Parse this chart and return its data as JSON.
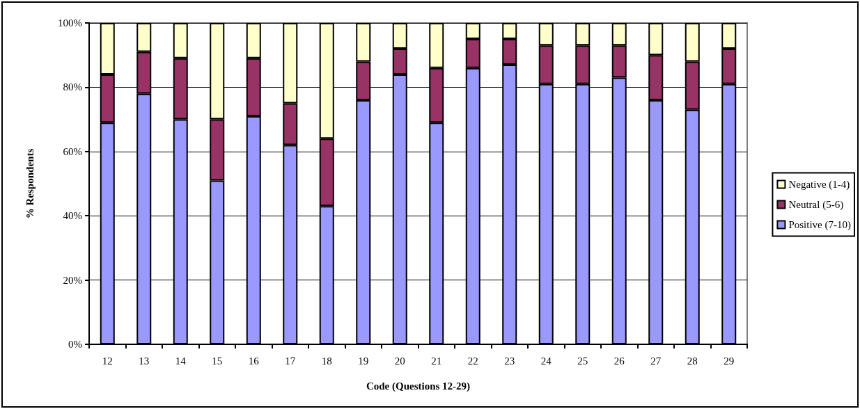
{
  "chart_data": {
    "type": "bar",
    "stacked": true,
    "xlabel": "Code (Questions 12-29)",
    "ylabel": "% Respondents",
    "categories": [
      "12",
      "13",
      "14",
      "15",
      "16",
      "17",
      "18",
      "19",
      "20",
      "21",
      "22",
      "23",
      "24",
      "25",
      "26",
      "27",
      "28",
      "29"
    ],
    "series": [
      {
        "name": "Positive (7-10)",
        "color": "#9999ff",
        "values": [
          69,
          78,
          70,
          51,
          71,
          62,
          43,
          76,
          84,
          69,
          86,
          87,
          81,
          81,
          83,
          76,
          73,
          81
        ]
      },
      {
        "name": "Neutral (5-6)",
        "color": "#993366",
        "values": [
          15,
          13,
          19,
          19,
          18,
          13,
          21,
          12,
          8,
          17,
          9,
          8,
          12,
          12,
          10,
          14,
          15,
          11
        ]
      },
      {
        "name": "Negative (1-4)",
        "color": "#ffffcc",
        "values": [
          16,
          9,
          11,
          30,
          11,
          25,
          36,
          12,
          8,
          14,
          5,
          5,
          7,
          7,
          7,
          10,
          12,
          8
        ]
      }
    ],
    "ylim": [
      0,
      100
    ],
    "yticks": [
      {
        "value": 0,
        "label": "0%"
      },
      {
        "value": 20,
        "label": "20%"
      },
      {
        "value": 40,
        "label": "40%"
      },
      {
        "value": 60,
        "label": "60%"
      },
      {
        "value": 80,
        "label": "80%"
      },
      {
        "value": 100,
        "label": "100%"
      }
    ],
    "grid": "y",
    "legend": "right"
  }
}
